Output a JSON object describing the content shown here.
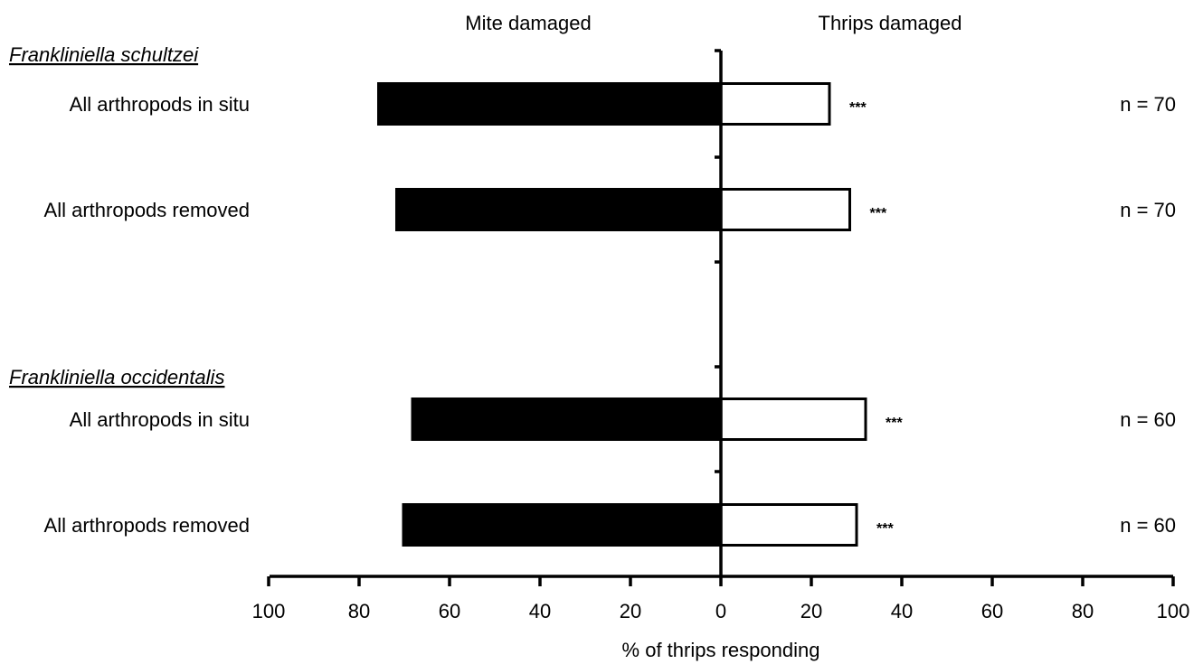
{
  "chart_data": {
    "type": "bar",
    "orientation": "horizontal-diverging",
    "header_left": "Mite damaged",
    "header_right": "Thrips damaged",
    "xlabel": "% of thrips responding",
    "xlim": [
      -100,
      100
    ],
    "x_ticks": [
      -100,
      -80,
      -60,
      -40,
      -20,
      0,
      20,
      40,
      60,
      80,
      100
    ],
    "x_tick_labels": [
      "100",
      "80",
      "60",
      "40",
      "20",
      "0",
      "20",
      "40",
      "60",
      "80",
      "100"
    ],
    "grid": false,
    "groups": [
      {
        "name": "Frankliniella schultzei",
        "rows": [
          {
            "label": "All arthropods in situ",
            "mite_damaged": 76,
            "thrips_damaged": 24,
            "significance": "***",
            "n": "n = 70"
          },
          {
            "label": "All arthropods removed",
            "mite_damaged": 72,
            "thrips_damaged": 28.5,
            "significance": "***",
            "n": "n = 70"
          }
        ]
      },
      {
        "name": "Frankliniella occidentalis",
        "rows": [
          {
            "label": "All arthropods in situ",
            "mite_damaged": 68.5,
            "thrips_damaged": 32,
            "significance": "***",
            "n": "n = 60"
          },
          {
            "label": "All arthropods removed",
            "mite_damaged": 70.5,
            "thrips_damaged": 30,
            "significance": "***",
            "n": "n = 60"
          }
        ]
      }
    ],
    "colors": {
      "mite_damaged": "#000000",
      "thrips_damaged": "#ffffff",
      "outline": "#000000"
    }
  }
}
